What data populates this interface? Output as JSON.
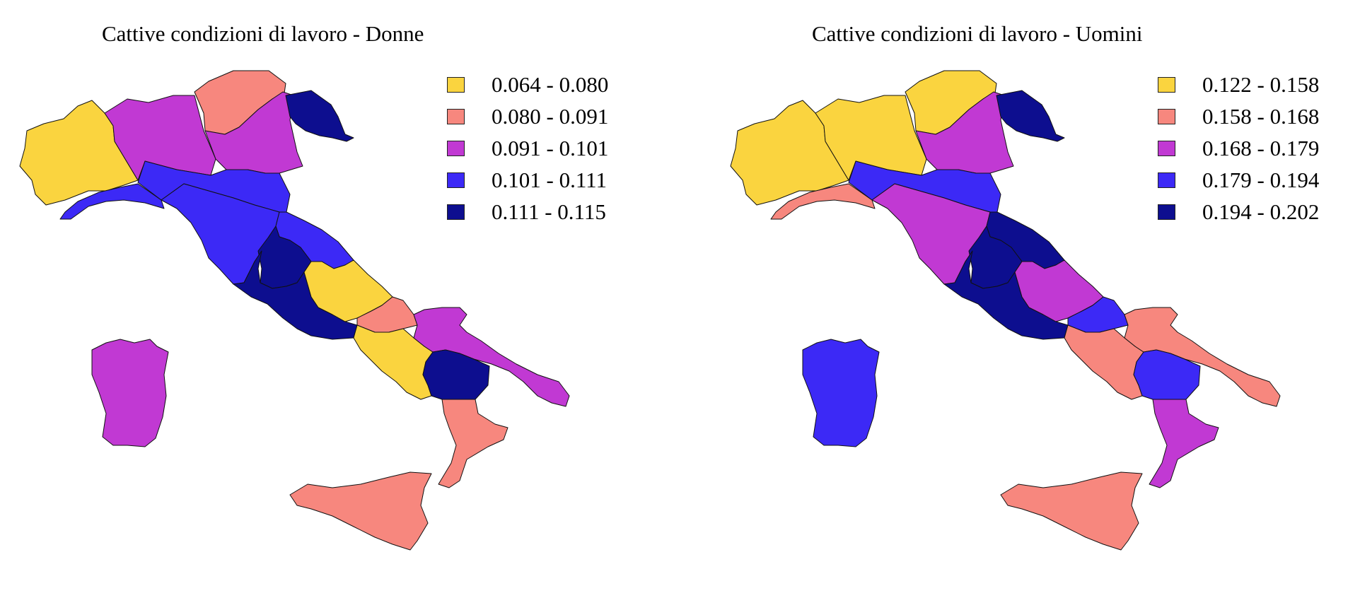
{
  "palette": {
    "c1": "#fad43f",
    "c2": "#f7877e",
    "c3": "#c139d3",
    "c4": "#3c29f6",
    "c5": "#0d0e8f"
  },
  "maps": [
    {
      "title": "Cattive condizioni di lavoro - Donne",
      "legend": [
        {
          "label": "0.064 - 0.080",
          "color": "c1"
        },
        {
          "label": "0.080 - 0.091",
          "color": "c2"
        },
        {
          "label": "0.091 - 0.101",
          "color": "c3"
        },
        {
          "label": "0.101 - 0.111",
          "color": "c4"
        },
        {
          "label": "0.111 - 0.115",
          "color": "c5"
        }
      ],
      "region_classes": {
        "valle-d-aosta-piemonte": "c1",
        "liguria": "c4",
        "lombardia": "c3",
        "trentino-alto-adige": "c2",
        "veneto": "c3",
        "friuli-venezia-giulia": "c5",
        "emilia-romagna": "c4",
        "toscana": "c4",
        "marche": "c4",
        "umbria": "c5",
        "lazio": "c5",
        "abruzzo": "c1",
        "molise": "c2",
        "campania": "c1",
        "puglia": "c3",
        "basilicata": "c5",
        "calabria": "c2",
        "sicilia": "c2",
        "sardegna": "c3"
      }
    },
    {
      "title": "Cattive condizioni di lavoro - Uomini",
      "legend": [
        {
          "label": "0.122 - 0.158",
          "color": "c1"
        },
        {
          "label": "0.158 - 0.168",
          "color": "c2"
        },
        {
          "label": "0.168 - 0.179",
          "color": "c3"
        },
        {
          "label": "0.179 - 0.194",
          "color": "c4"
        },
        {
          "label": "0.194 - 0.202",
          "color": "c5"
        }
      ],
      "region_classes": {
        "valle-d-aosta-piemonte": "c1",
        "liguria": "c2",
        "lombardia": "c1",
        "trentino-alto-adige": "c1",
        "veneto": "c3",
        "friuli-venezia-giulia": "c5",
        "emilia-romagna": "c4",
        "toscana": "c3",
        "marche": "c5",
        "umbria": "c5",
        "lazio": "c5",
        "abruzzo": "c3",
        "molise": "c4",
        "campania": "c2",
        "puglia": "c2",
        "basilicata": "c4",
        "calabria": "c3",
        "sicilia": "c2",
        "sardegna": "c4"
      }
    }
  ]
}
